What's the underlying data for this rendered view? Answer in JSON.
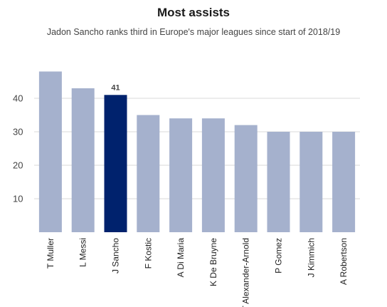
{
  "chart_data": {
    "type": "bar",
    "title": "Most assists",
    "subtitle": "Jadon Sancho ranks third in Europe's major leagues since start of 2018/19",
    "categories": [
      "T Muller",
      "L Messi",
      "J Sancho",
      "F Kostic",
      "A Di Maria",
      "K De Bruyne",
      "T Alexander-Arnold",
      "P Gomez",
      "J Kimmich",
      "A Robertson"
    ],
    "values": [
      48,
      43,
      41,
      35,
      34,
      34,
      32,
      30,
      30,
      30
    ],
    "highlight_index": 2,
    "data_labels": [
      {
        "index": 2,
        "text": "41"
      }
    ],
    "ylim": [
      0,
      50
    ],
    "yticks": [
      10,
      20,
      30,
      40
    ],
    "grid": true,
    "xlabel": "",
    "ylabel": "",
    "colors": {
      "bar": "#a5b1cd",
      "highlight": "#00226d"
    }
  }
}
